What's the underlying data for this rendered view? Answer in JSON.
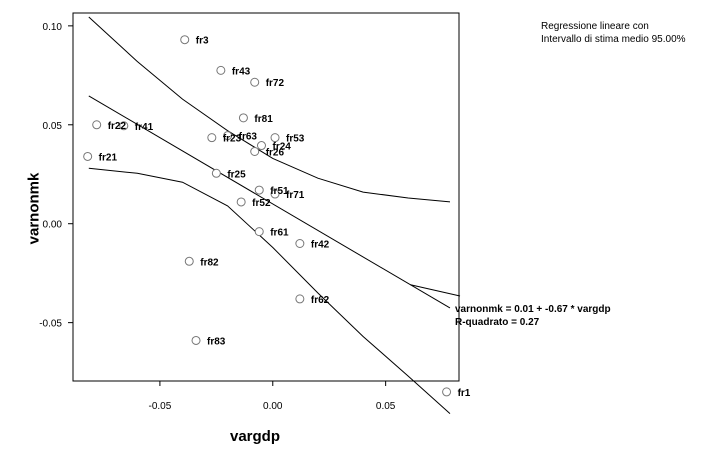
{
  "legend": {
    "line1": "Regressione lineare con",
    "line2": "Intervallo di stima medio 95.00%"
  },
  "equation": {
    "line1": "varnonmk = 0.01 + -0.67 * vargdp",
    "line2": "R-quadrato = 0.27"
  },
  "chart_data": {
    "type": "scatter",
    "xlabel": "vargdp",
    "ylabel": "varnonmk",
    "xlim": [
      -0.0885,
      0.0825
    ],
    "ylim": [
      -0.0795,
      0.1065
    ],
    "x_ticks": [
      -0.05,
      0.0,
      0.05
    ],
    "x_tick_labels": [
      "-0.05",
      "0.00",
      "0.05"
    ],
    "y_ticks": [
      -0.05,
      0.0,
      0.05,
      0.1
    ],
    "y_tick_labels": [
      "-0.05",
      "0.00",
      "0.05",
      "0.10"
    ],
    "grid": false,
    "points": [
      {
        "label": "fr3",
        "x": -0.039,
        "y": 0.093
      },
      {
        "label": "fr43",
        "x": -0.023,
        "y": 0.0775
      },
      {
        "label": "fr72",
        "x": -0.008,
        "y": 0.0715
      },
      {
        "label": "fr22",
        "x": -0.078,
        "y": 0.05
      },
      {
        "label": "fr41",
        "x": -0.066,
        "y": 0.0495
      },
      {
        "label": "fr81",
        "x": -0.013,
        "y": 0.0535
      },
      {
        "label": "fr23",
        "x": -0.027,
        "y": 0.0435
      },
      {
        "label": "fr63",
        "x": -0.02,
        "y": 0.0445
      },
      {
        "label": "fr53",
        "x": 0.001,
        "y": 0.0435
      },
      {
        "label": "fr24",
        "x": -0.005,
        "y": 0.0395
      },
      {
        "label": "fr26",
        "x": -0.008,
        "y": 0.0365
      },
      {
        "label": "fr21",
        "x": -0.082,
        "y": 0.034
      },
      {
        "label": "fr25",
        "x": -0.025,
        "y": 0.0255
      },
      {
        "label": "fr51",
        "x": -0.006,
        "y": 0.017
      },
      {
        "label": "fr71",
        "x": 0.001,
        "y": 0.015
      },
      {
        "label": "fr52",
        "x": -0.014,
        "y": 0.011
      },
      {
        "label": "fr61",
        "x": -0.006,
        "y": -0.004
      },
      {
        "label": "fr42",
        "x": 0.012,
        "y": -0.01
      },
      {
        "label": "fr82",
        "x": -0.037,
        "y": -0.019
      },
      {
        "label": "fr62",
        "x": 0.012,
        "y": -0.038
      },
      {
        "label": "fr83",
        "x": -0.034,
        "y": -0.059
      },
      {
        "label": "fr1",
        "x": 0.077,
        "y": -0.085
      }
    ],
    "regression": {
      "intercept": 0.01,
      "slope": -0.67
    },
    "confidence_band": {
      "x": [
        -0.0815,
        -0.06,
        -0.04,
        -0.02,
        0.0,
        0.02,
        0.04,
        0.06,
        0.0785
      ],
      "upper": [
        0.1045,
        0.082,
        0.063,
        0.047,
        0.033,
        0.023,
        0.016,
        0.013,
        0.011
      ],
      "lower": [
        0.028,
        0.0255,
        0.021,
        0.009,
        -0.012,
        -0.035,
        -0.057,
        -0.077,
        -0.096
      ]
    }
  }
}
